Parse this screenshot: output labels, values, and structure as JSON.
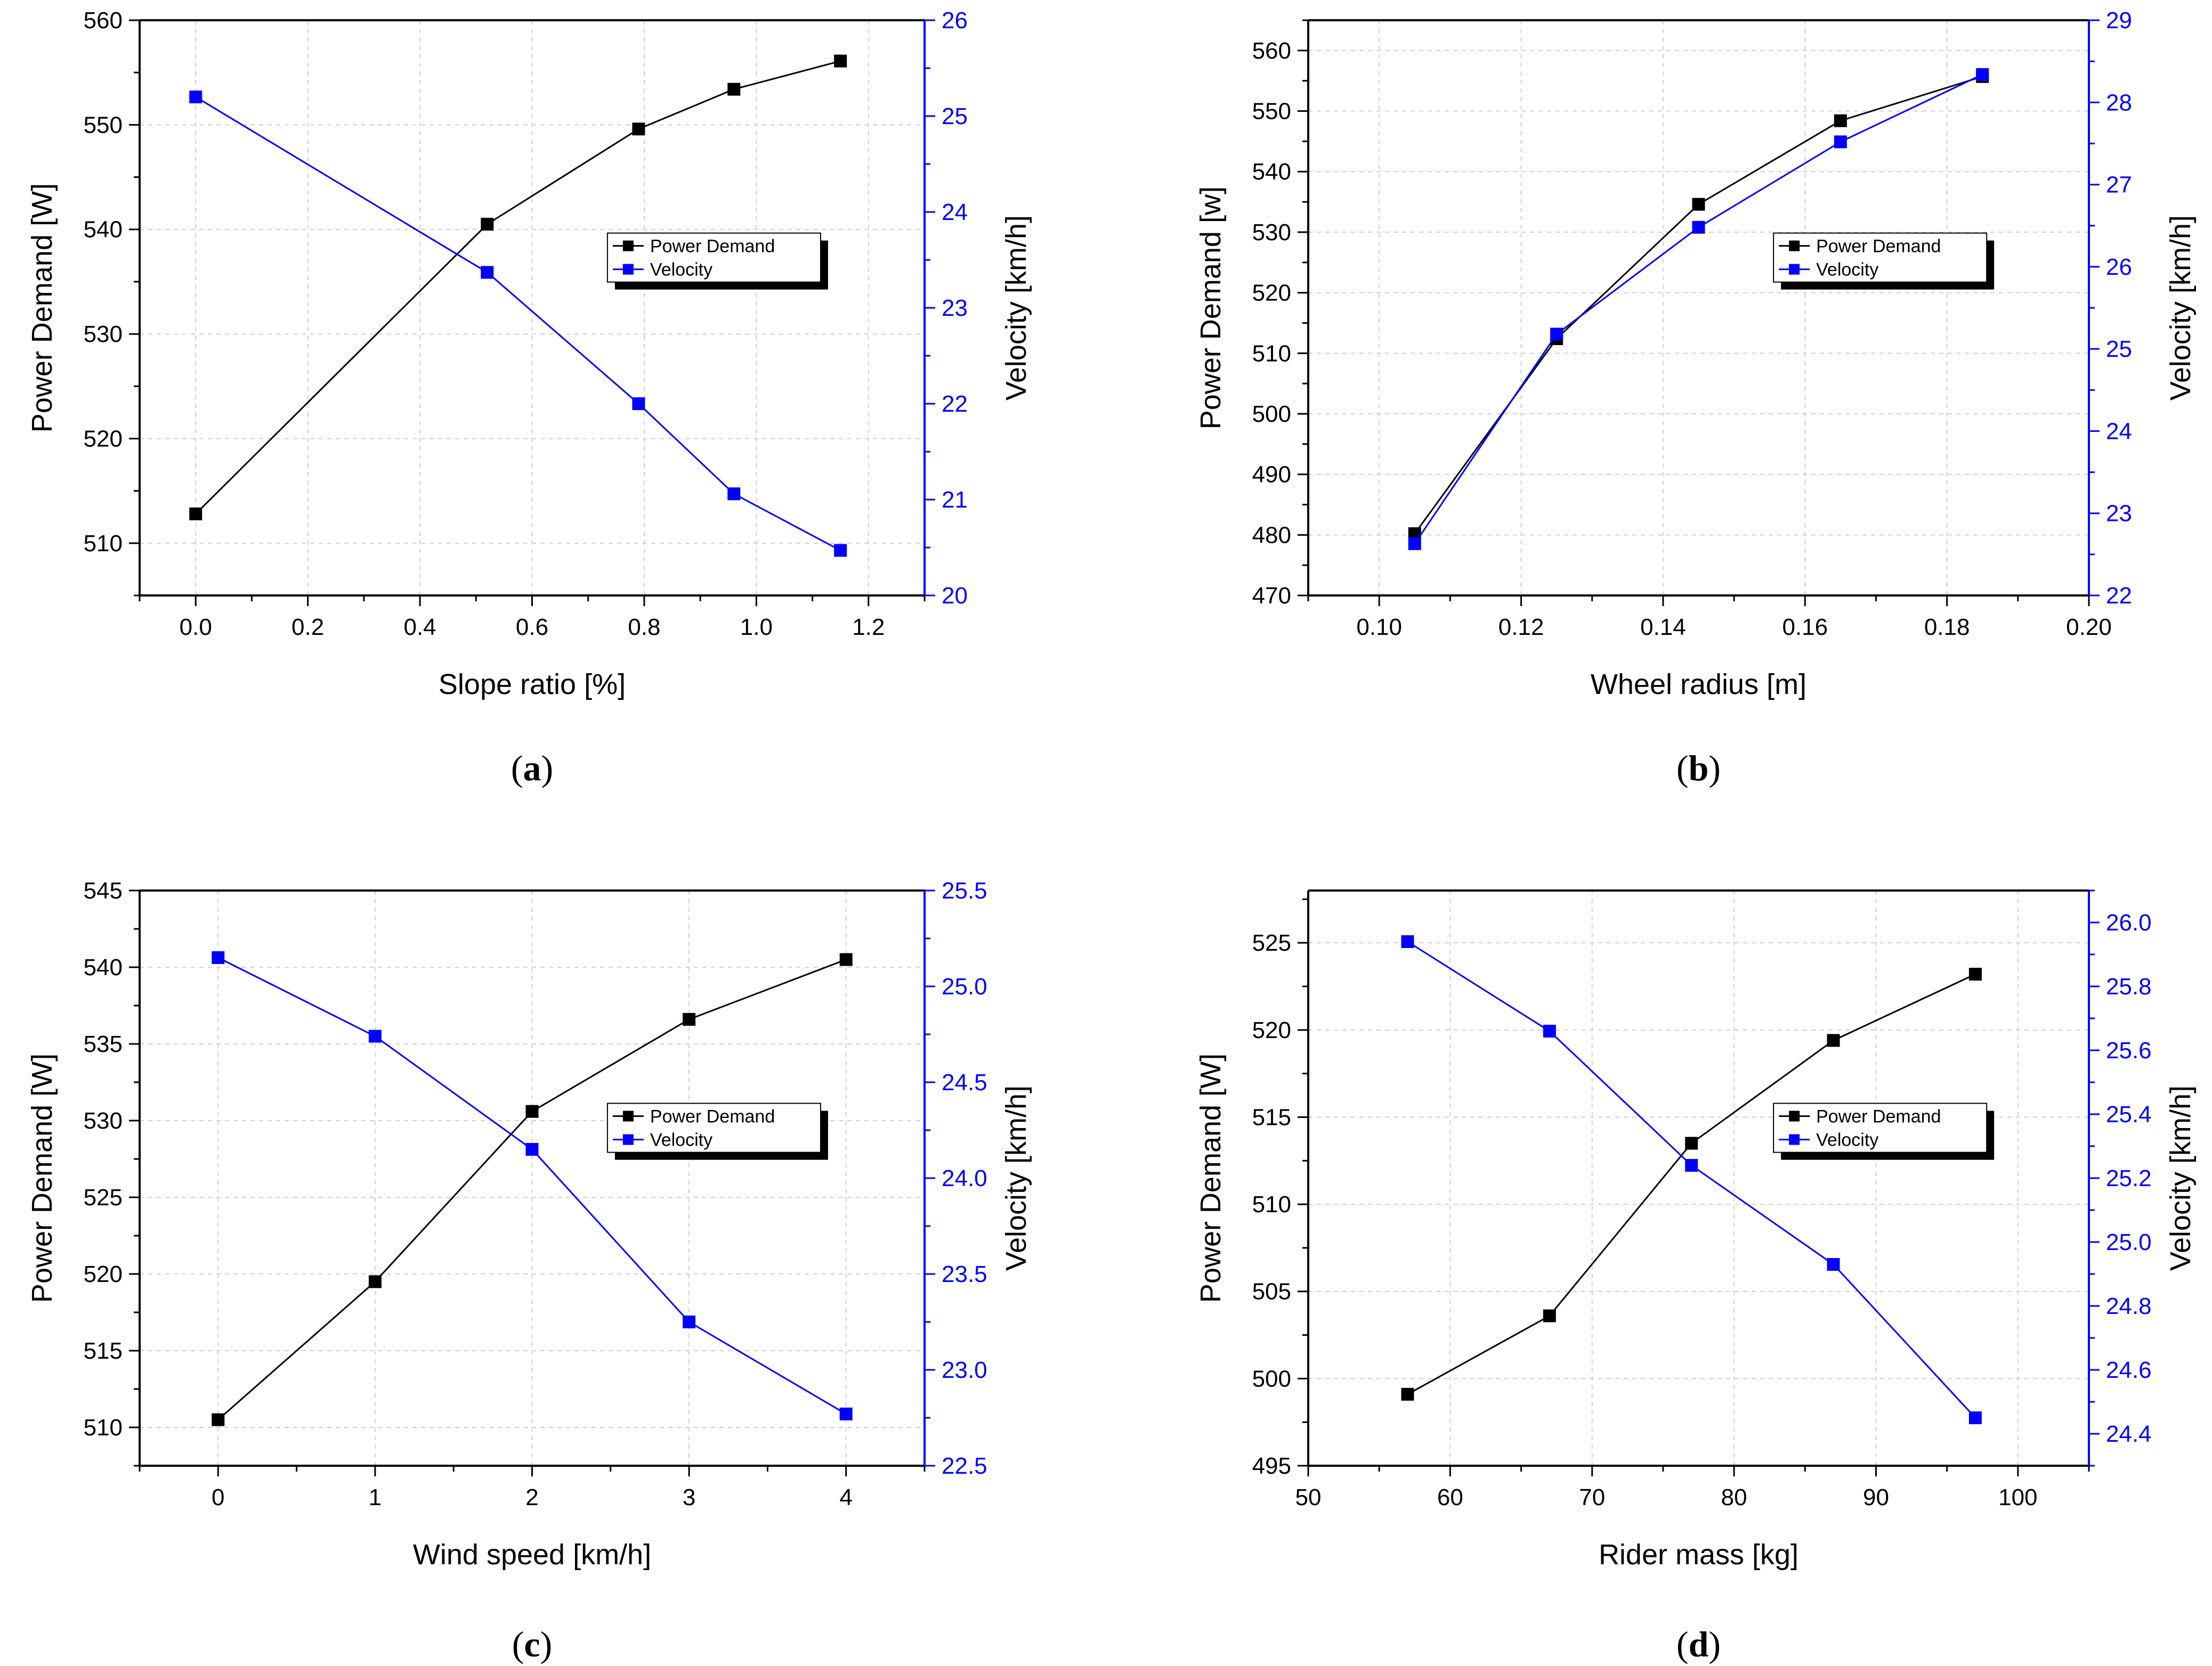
{
  "figure": {
    "panel_labels": [
      "(a)",
      "(b)",
      "(c)",
      "(d)"
    ]
  },
  "colors": {
    "power": "#000000",
    "velocity": "#0000ff",
    "grid": "#d0d0d0"
  },
  "chart_data": [
    {
      "type": "line",
      "panel": "a",
      "xlabel": "Slope ratio [%]",
      "ylabel": "Power Demand [W]",
      "y2label": "Velocity [km/h]",
      "xlim": [
        -0.1,
        1.3
      ],
      "ylim": [
        505,
        560
      ],
      "y2lim": [
        20,
        26
      ],
      "xticks": [
        0.0,
        0.2,
        0.4,
        0.6,
        0.8,
        1.0,
        1.2
      ],
      "xtick_labels": [
        "0.0",
        "0.2",
        "0.4",
        "0.6",
        "0.8",
        "1.0",
        "1.2"
      ],
      "yticks": [
        510,
        520,
        530,
        540,
        550,
        560
      ],
      "ytick_labels": [
        "510",
        "520",
        "530",
        "540",
        "550",
        "560"
      ],
      "y2ticks": [
        20,
        21,
        22,
        23,
        24,
        25,
        26
      ],
      "y2tick_labels": [
        "20",
        "21",
        "22",
        "23",
        "24",
        "25",
        "26"
      ],
      "grid": true,
      "legend": {
        "placement": "center-right",
        "entries": [
          "Power Demand",
          "Velocity"
        ]
      },
      "series": [
        {
          "name": "Power Demand",
          "axis": "left",
          "x": [
            0.0,
            0.52,
            0.79,
            0.96,
            1.15
          ],
          "values": [
            512.8,
            540.5,
            549.6,
            553.4,
            556.1
          ]
        },
        {
          "name": "Velocity",
          "axis": "right",
          "x": [
            0.0,
            0.52,
            0.79,
            0.96,
            1.15
          ],
          "values": [
            25.2,
            23.37,
            22.0,
            21.06,
            20.47
          ]
        }
      ]
    },
    {
      "type": "line",
      "panel": "b",
      "xlabel": "Wheel radius [m]",
      "ylabel": "Power Demand [w]",
      "y2label": "Velocity [km/h]",
      "xlim": [
        0.09,
        0.2
      ],
      "ylim": [
        470,
        565
      ],
      "y2lim": [
        22,
        29
      ],
      "xticks": [
        0.1,
        0.12,
        0.14,
        0.16,
        0.18,
        0.2
      ],
      "xtick_labels": [
        "0.10",
        "0.12",
        "0.14",
        "0.16",
        "0.18",
        "0.20"
      ],
      "yticks": [
        470,
        480,
        490,
        500,
        510,
        520,
        530,
        540,
        550,
        560
      ],
      "ytick_labels": [
        "470",
        "480",
        "490",
        "500",
        "510",
        "520",
        "530",
        "540",
        "550",
        "560"
      ],
      "y2ticks": [
        22,
        23,
        24,
        25,
        26,
        27,
        28,
        29
      ],
      "y2tick_labels": [
        "22",
        "23",
        "24",
        "25",
        "26",
        "27",
        "28",
        "29"
      ],
      "grid": true,
      "legend": {
        "placement": "center-right",
        "entries": [
          "Power Demand",
          "Velocity"
        ]
      },
      "series": [
        {
          "name": "Power Demand",
          "axis": "left",
          "x": [
            0.105,
            0.125,
            0.145,
            0.165,
            0.185
          ],
          "values": [
            480.2,
            512.4,
            534.6,
            548.4,
            555.7
          ]
        },
        {
          "name": "Velocity",
          "axis": "right",
          "x": [
            0.105,
            0.125,
            0.145,
            0.165,
            0.185
          ],
          "values": [
            22.63,
            25.18,
            26.48,
            27.52,
            28.34
          ]
        }
      ]
    },
    {
      "type": "line",
      "panel": "c",
      "xlabel": "Wind speed [km/h]",
      "ylabel": "Power Demand [W]",
      "y2label": "Velocity [km/h]",
      "xlim": [
        -0.5,
        4.5
      ],
      "ylim": [
        507.5,
        545
      ],
      "y2lim": [
        22.5,
        25.5
      ],
      "xticks": [
        0,
        1,
        2,
        3,
        4
      ],
      "xtick_labels": [
        "0",
        "1",
        "2",
        "3",
        "4"
      ],
      "yticks": [
        510,
        515,
        520,
        525,
        530,
        535,
        540,
        545
      ],
      "ytick_labels": [
        "510",
        "515",
        "520",
        "525",
        "530",
        "535",
        "540",
        "545"
      ],
      "y2ticks": [
        22.5,
        23.0,
        23.5,
        24.0,
        24.5,
        25.0,
        25.5
      ],
      "y2tick_labels": [
        "22.5",
        "23.0",
        "23.5",
        "24.0",
        "24.5",
        "25.0",
        "25.5"
      ],
      "grid": true,
      "legend": {
        "placement": "center-right",
        "entries": [
          "Power Demand",
          "Velocity"
        ]
      },
      "series": [
        {
          "name": "Power Demand",
          "axis": "left",
          "x": [
            0,
            1,
            2,
            3,
            4
          ],
          "values": [
            510.5,
            519.5,
            530.6,
            536.6,
            540.5
          ]
        },
        {
          "name": "Velocity",
          "axis": "right",
          "x": [
            0,
            1,
            2,
            3,
            4
          ],
          "values": [
            25.15,
            24.74,
            24.15,
            23.25,
            22.77
          ]
        }
      ]
    },
    {
      "type": "line",
      "panel": "d",
      "xlabel": "Rider mass [kg]",
      "ylabel": "Power Demand [W]",
      "y2label": "Velocity [km/h]",
      "xlim": [
        50,
        105
      ],
      "ylim": [
        495,
        528
      ],
      "y2lim": [
        24.3,
        26.1
      ],
      "xticks": [
        50,
        60,
        70,
        80,
        90,
        100
      ],
      "xtick_labels": [
        "50",
        "60",
        "70",
        "80",
        "90",
        "100"
      ],
      "yticks": [
        495,
        500,
        505,
        510,
        515,
        520,
        525
      ],
      "ytick_labels": [
        "495",
        "500",
        "505",
        "510",
        "515",
        "520",
        "525"
      ],
      "y2ticks": [
        24.4,
        24.6,
        24.8,
        25.0,
        25.2,
        25.4,
        25.6,
        25.8,
        26.0
      ],
      "y2tick_labels": [
        "24.4",
        "24.6",
        "24.8",
        "25.0",
        "25.2",
        "25.4",
        "25.6",
        "25.8",
        "26.0"
      ],
      "grid": true,
      "legend": {
        "placement": "center-right",
        "entries": [
          "Power Demand",
          "Velocity"
        ]
      },
      "series": [
        {
          "name": "Power Demand",
          "axis": "left",
          "x": [
            57,
            67,
            77,
            87,
            97
          ],
          "values": [
            499.1,
            503.6,
            513.5,
            519.4,
            523.2
          ]
        },
        {
          "name": "Velocity",
          "axis": "right",
          "x": [
            57,
            67,
            77,
            87,
            97
          ],
          "values": [
            25.94,
            25.66,
            25.24,
            24.93,
            24.45
          ]
        }
      ]
    }
  ]
}
